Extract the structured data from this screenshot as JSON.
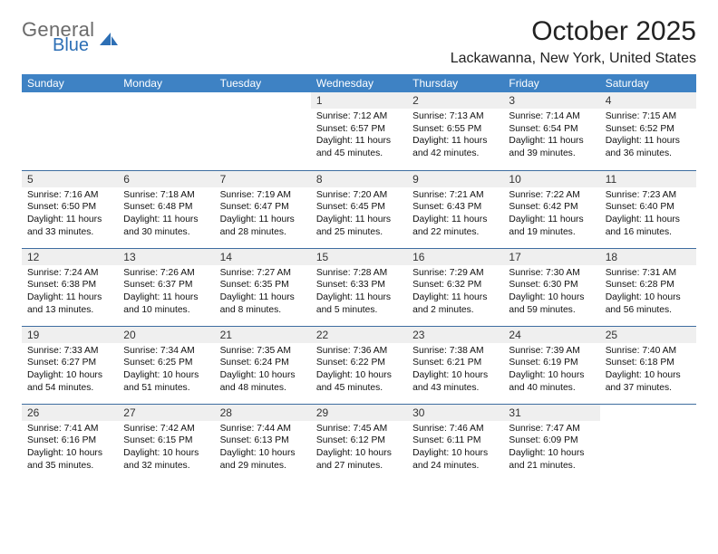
{
  "logo": {
    "general": "General",
    "blue": "Blue",
    "shape_color": "#2d6fb5"
  },
  "title": "October 2025",
  "subtitle": "Lackawanna, New York, United States",
  "colors": {
    "header_bg": "#3e82c4",
    "header_fg": "#ffffff",
    "daynum_bg": "#efefef",
    "row_border": "#3e6da0",
    "title_color": "#222222",
    "text_color": "#111111"
  },
  "day_names": [
    "Sunday",
    "Monday",
    "Tuesday",
    "Wednesday",
    "Thursday",
    "Friday",
    "Saturday"
  ],
  "weeks": [
    [
      {
        "n": "",
        "sr": "",
        "ss": "",
        "d1": "",
        "d2": "",
        "empty": true
      },
      {
        "n": "",
        "sr": "",
        "ss": "",
        "d1": "",
        "d2": "",
        "empty": true
      },
      {
        "n": "",
        "sr": "",
        "ss": "",
        "d1": "",
        "d2": "",
        "empty": true
      },
      {
        "n": "1",
        "sr": "Sunrise: 7:12 AM",
        "ss": "Sunset: 6:57 PM",
        "d1": "Daylight: 11 hours",
        "d2": "and 45 minutes."
      },
      {
        "n": "2",
        "sr": "Sunrise: 7:13 AM",
        "ss": "Sunset: 6:55 PM",
        "d1": "Daylight: 11 hours",
        "d2": "and 42 minutes."
      },
      {
        "n": "3",
        "sr": "Sunrise: 7:14 AM",
        "ss": "Sunset: 6:54 PM",
        "d1": "Daylight: 11 hours",
        "d2": "and 39 minutes."
      },
      {
        "n": "4",
        "sr": "Sunrise: 7:15 AM",
        "ss": "Sunset: 6:52 PM",
        "d1": "Daylight: 11 hours",
        "d2": "and 36 minutes."
      }
    ],
    [
      {
        "n": "5",
        "sr": "Sunrise: 7:16 AM",
        "ss": "Sunset: 6:50 PM",
        "d1": "Daylight: 11 hours",
        "d2": "and 33 minutes."
      },
      {
        "n": "6",
        "sr": "Sunrise: 7:18 AM",
        "ss": "Sunset: 6:48 PM",
        "d1": "Daylight: 11 hours",
        "d2": "and 30 minutes."
      },
      {
        "n": "7",
        "sr": "Sunrise: 7:19 AM",
        "ss": "Sunset: 6:47 PM",
        "d1": "Daylight: 11 hours",
        "d2": "and 28 minutes."
      },
      {
        "n": "8",
        "sr": "Sunrise: 7:20 AM",
        "ss": "Sunset: 6:45 PM",
        "d1": "Daylight: 11 hours",
        "d2": "and 25 minutes."
      },
      {
        "n": "9",
        "sr": "Sunrise: 7:21 AM",
        "ss": "Sunset: 6:43 PM",
        "d1": "Daylight: 11 hours",
        "d2": "and 22 minutes."
      },
      {
        "n": "10",
        "sr": "Sunrise: 7:22 AM",
        "ss": "Sunset: 6:42 PM",
        "d1": "Daylight: 11 hours",
        "d2": "and 19 minutes."
      },
      {
        "n": "11",
        "sr": "Sunrise: 7:23 AM",
        "ss": "Sunset: 6:40 PM",
        "d1": "Daylight: 11 hours",
        "d2": "and 16 minutes."
      }
    ],
    [
      {
        "n": "12",
        "sr": "Sunrise: 7:24 AM",
        "ss": "Sunset: 6:38 PM",
        "d1": "Daylight: 11 hours",
        "d2": "and 13 minutes."
      },
      {
        "n": "13",
        "sr": "Sunrise: 7:26 AM",
        "ss": "Sunset: 6:37 PM",
        "d1": "Daylight: 11 hours",
        "d2": "and 10 minutes."
      },
      {
        "n": "14",
        "sr": "Sunrise: 7:27 AM",
        "ss": "Sunset: 6:35 PM",
        "d1": "Daylight: 11 hours",
        "d2": "and 8 minutes."
      },
      {
        "n": "15",
        "sr": "Sunrise: 7:28 AM",
        "ss": "Sunset: 6:33 PM",
        "d1": "Daylight: 11 hours",
        "d2": "and 5 minutes."
      },
      {
        "n": "16",
        "sr": "Sunrise: 7:29 AM",
        "ss": "Sunset: 6:32 PM",
        "d1": "Daylight: 11 hours",
        "d2": "and 2 minutes."
      },
      {
        "n": "17",
        "sr": "Sunrise: 7:30 AM",
        "ss": "Sunset: 6:30 PM",
        "d1": "Daylight: 10 hours",
        "d2": "and 59 minutes."
      },
      {
        "n": "18",
        "sr": "Sunrise: 7:31 AM",
        "ss": "Sunset: 6:28 PM",
        "d1": "Daylight: 10 hours",
        "d2": "and 56 minutes."
      }
    ],
    [
      {
        "n": "19",
        "sr": "Sunrise: 7:33 AM",
        "ss": "Sunset: 6:27 PM",
        "d1": "Daylight: 10 hours",
        "d2": "and 54 minutes."
      },
      {
        "n": "20",
        "sr": "Sunrise: 7:34 AM",
        "ss": "Sunset: 6:25 PM",
        "d1": "Daylight: 10 hours",
        "d2": "and 51 minutes."
      },
      {
        "n": "21",
        "sr": "Sunrise: 7:35 AM",
        "ss": "Sunset: 6:24 PM",
        "d1": "Daylight: 10 hours",
        "d2": "and 48 minutes."
      },
      {
        "n": "22",
        "sr": "Sunrise: 7:36 AM",
        "ss": "Sunset: 6:22 PM",
        "d1": "Daylight: 10 hours",
        "d2": "and 45 minutes."
      },
      {
        "n": "23",
        "sr": "Sunrise: 7:38 AM",
        "ss": "Sunset: 6:21 PM",
        "d1": "Daylight: 10 hours",
        "d2": "and 43 minutes."
      },
      {
        "n": "24",
        "sr": "Sunrise: 7:39 AM",
        "ss": "Sunset: 6:19 PM",
        "d1": "Daylight: 10 hours",
        "d2": "and 40 minutes."
      },
      {
        "n": "25",
        "sr": "Sunrise: 7:40 AM",
        "ss": "Sunset: 6:18 PM",
        "d1": "Daylight: 10 hours",
        "d2": "and 37 minutes."
      }
    ],
    [
      {
        "n": "26",
        "sr": "Sunrise: 7:41 AM",
        "ss": "Sunset: 6:16 PM",
        "d1": "Daylight: 10 hours",
        "d2": "and 35 minutes."
      },
      {
        "n": "27",
        "sr": "Sunrise: 7:42 AM",
        "ss": "Sunset: 6:15 PM",
        "d1": "Daylight: 10 hours",
        "d2": "and 32 minutes."
      },
      {
        "n": "28",
        "sr": "Sunrise: 7:44 AM",
        "ss": "Sunset: 6:13 PM",
        "d1": "Daylight: 10 hours",
        "d2": "and 29 minutes."
      },
      {
        "n": "29",
        "sr": "Sunrise: 7:45 AM",
        "ss": "Sunset: 6:12 PM",
        "d1": "Daylight: 10 hours",
        "d2": "and 27 minutes."
      },
      {
        "n": "30",
        "sr": "Sunrise: 7:46 AM",
        "ss": "Sunset: 6:11 PM",
        "d1": "Daylight: 10 hours",
        "d2": "and 24 minutes."
      },
      {
        "n": "31",
        "sr": "Sunrise: 7:47 AM",
        "ss": "Sunset: 6:09 PM",
        "d1": "Daylight: 10 hours",
        "d2": "and 21 minutes."
      },
      {
        "n": "",
        "sr": "",
        "ss": "",
        "d1": "",
        "d2": "",
        "empty": true
      }
    ]
  ]
}
